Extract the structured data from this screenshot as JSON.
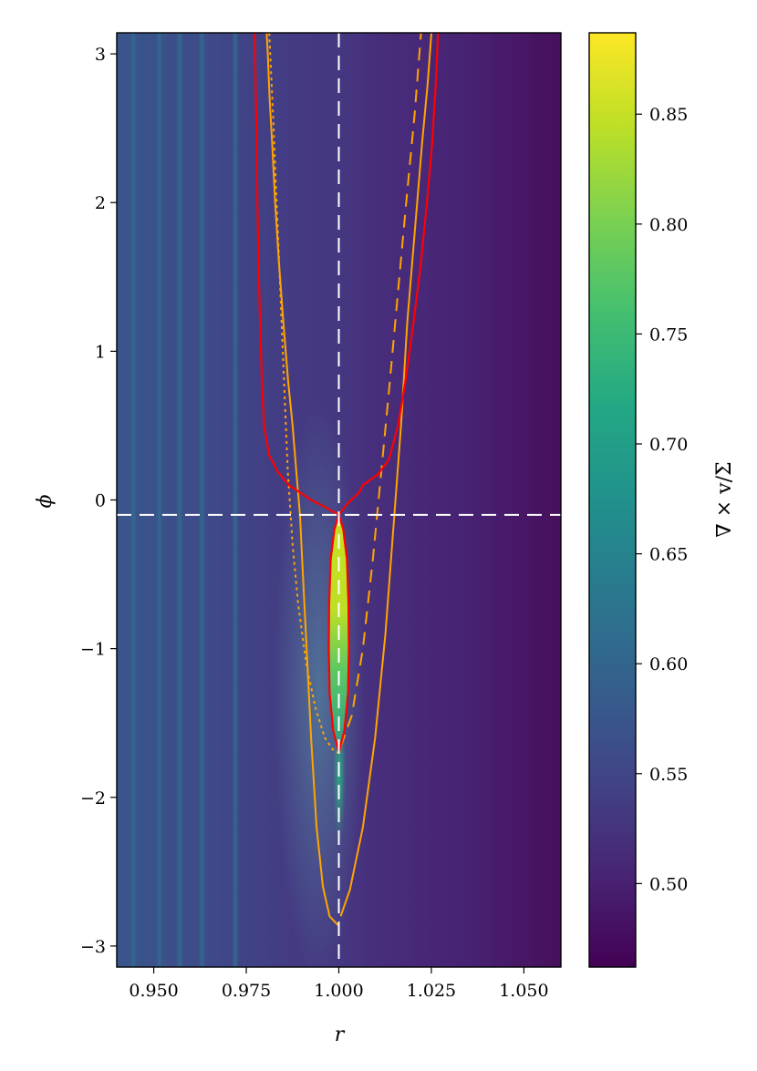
{
  "chart_data": {
    "type": "heatmap",
    "title": "",
    "xlabel": "r",
    "ylabel": "ϕ",
    "colorbar_label": "∇ × v/Σ",
    "xlim": [
      0.94,
      1.06
    ],
    "ylim": [
      -3.14159,
      3.14159
    ],
    "x_ticks": [
      0.95,
      0.975,
      1.0,
      1.025,
      1.05
    ],
    "x_tick_labels": [
      "0.950",
      "0.975",
      "1.000",
      "1.025",
      "1.050"
    ],
    "y_ticks": [
      -3,
      -2,
      -1,
      0,
      1,
      2,
      3
    ],
    "y_tick_labels": [
      "−3",
      "−2",
      "−1",
      "0",
      "1",
      "2",
      "3"
    ],
    "colorbar_range": [
      0.462,
      0.887
    ],
    "colorbar_ticks": [
      0.5,
      0.55,
      0.6,
      0.65,
      0.7,
      0.75,
      0.8,
      0.85
    ],
    "colorbar_tick_labels": [
      "0.50",
      "0.55",
      "0.60",
      "0.65",
      "0.70",
      "0.75",
      "0.80",
      "0.85"
    ],
    "colormap": "viridis",
    "reference_lines": [
      {
        "orientation": "vertical",
        "value": 1.0,
        "style": "dashed",
        "color": "#ffffff"
      },
      {
        "orientation": "horizontal",
        "value": -0.1,
        "style": "dashed",
        "color": "#ffffff"
      }
    ],
    "stripes_r": [
      0.9445,
      0.9515,
      0.957,
      0.963,
      0.972
    ],
    "series": [
      {
        "id": "orange-solid-left",
        "color": "#ffa500",
        "style": "solid",
        "points": [
          [
            0.9805,
            3.14
          ],
          [
            0.9808,
            3.0
          ],
          [
            0.9813,
            2.7
          ],
          [
            0.982,
            2.4
          ],
          [
            0.9828,
            2.0
          ],
          [
            0.9838,
            1.6
          ],
          [
            0.985,
            1.2
          ],
          [
            0.9863,
            0.8
          ],
          [
            0.9875,
            0.5
          ],
          [
            0.9885,
            0.2
          ],
          [
            0.9895,
            -0.1
          ],
          [
            0.9903,
            -0.5
          ],
          [
            0.9913,
            -1.0
          ],
          [
            0.9925,
            -1.6
          ],
          [
            0.994,
            -2.2
          ],
          [
            0.9957,
            -2.6
          ],
          [
            0.9975,
            -2.8
          ],
          [
            0.9998,
            -2.86
          ]
        ]
      },
      {
        "id": "orange-solid-right",
        "color": "#ffa500",
        "style": "solid",
        "points": [
          [
            1.0005,
            -2.8
          ],
          [
            1.003,
            -2.62
          ],
          [
            1.0065,
            -2.2
          ],
          [
            1.0098,
            -1.6
          ],
          [
            1.0126,
            -0.9
          ],
          [
            1.015,
            -0.1
          ],
          [
            1.0168,
            0.5
          ],
          [
            1.0185,
            1.2
          ],
          [
            1.0205,
            1.8
          ],
          [
            1.0225,
            2.4
          ],
          [
            1.024,
            2.8
          ],
          [
            1.025,
            3.14
          ]
        ]
      },
      {
        "id": "orange-dotted",
        "color": "#ffa500",
        "style": "dotted",
        "points": [
          [
            0.9812,
            3.14
          ],
          [
            0.9822,
            2.6
          ],
          [
            0.9832,
            2.0
          ],
          [
            0.9842,
            1.4
          ],
          [
            0.9852,
            0.8
          ],
          [
            0.9862,
            0.2
          ],
          [
            0.9875,
            -0.3
          ],
          [
            0.989,
            -0.7
          ],
          [
            0.9912,
            -1.1
          ],
          [
            0.9937,
            -1.4
          ],
          [
            0.9962,
            -1.6
          ],
          [
            0.9987,
            -1.69
          ],
          [
            1.0,
            -1.7
          ]
        ]
      },
      {
        "id": "orange-dashed",
        "color": "#ffa500",
        "style": "dashed",
        "points": [
          [
            1.0005,
            -1.66
          ],
          [
            1.0035,
            -1.45
          ],
          [
            1.0065,
            -1.0
          ],
          [
            1.0092,
            -0.4
          ],
          [
            1.0115,
            0.2
          ],
          [
            1.0138,
            0.8
          ],
          [
            1.016,
            1.4
          ],
          [
            1.0182,
            2.0
          ],
          [
            1.0205,
            2.6
          ],
          [
            1.0222,
            3.14
          ]
        ]
      },
      {
        "id": "red-outer",
        "color": "#ff0000",
        "style": "solid",
        "points": [
          [
            0.9773,
            3.14
          ],
          [
            0.9775,
            2.8
          ],
          [
            0.9778,
            2.4
          ],
          [
            0.978,
            2.0
          ],
          [
            0.9783,
            1.6
          ],
          [
            0.9787,
            1.2
          ],
          [
            0.9792,
            0.8
          ],
          [
            0.9798,
            0.5
          ],
          [
            0.9812,
            0.3
          ],
          [
            0.9835,
            0.19
          ],
          [
            0.9865,
            0.1
          ],
          [
            0.9925,
            0.0
          ],
          [
            0.9965,
            -0.05
          ],
          [
            1.0,
            -0.1
          ],
          [
            1.0025,
            -0.02
          ],
          [
            1.0055,
            0.05
          ],
          [
            1.0065,
            0.1
          ],
          [
            1.0105,
            0.17
          ],
          [
            1.0135,
            0.27
          ],
          [
            1.016,
            0.5
          ],
          [
            1.018,
            0.8
          ],
          [
            1.0202,
            1.2
          ],
          [
            1.0222,
            1.6
          ],
          [
            1.0238,
            2.0
          ],
          [
            1.0252,
            2.4
          ],
          [
            1.0262,
            2.8
          ],
          [
            1.0268,
            3.14
          ]
        ]
      },
      {
        "id": "red-drop",
        "color": "#ff0000",
        "style": "solid",
        "points": [
          [
            1.0,
            -0.1
          ],
          [
            0.9988,
            -0.2
          ],
          [
            0.9978,
            -0.4
          ],
          [
            0.9974,
            -0.7
          ],
          [
            0.9973,
            -1.0
          ],
          [
            0.9975,
            -1.3
          ],
          [
            0.9985,
            -1.55
          ],
          [
            1.0,
            -1.7
          ],
          [
            1.0015,
            -1.55
          ],
          [
            1.0025,
            -1.3
          ],
          [
            1.0027,
            -1.0
          ],
          [
            1.0026,
            -0.7
          ],
          [
            1.0022,
            -0.4
          ],
          [
            1.0012,
            -0.2
          ],
          [
            1.0,
            -0.1
          ]
        ]
      }
    ]
  }
}
